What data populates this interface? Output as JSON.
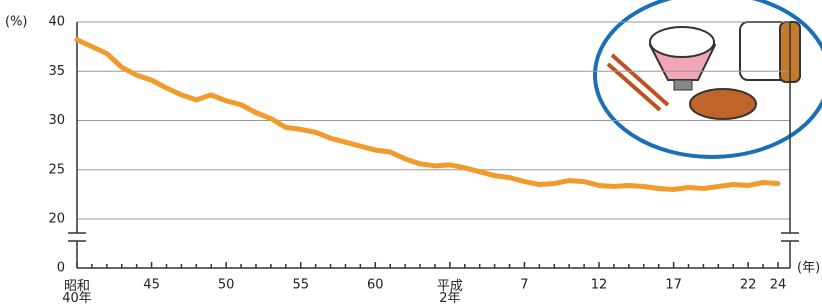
{
  "chart_data": {
    "type": "line",
    "y_unit": "(%)",
    "x_unit": "(年)",
    "categories": [
      "昭和\n40年",
      null,
      null,
      null,
      null,
      "45",
      null,
      null,
      null,
      null,
      "50",
      null,
      null,
      null,
      null,
      "55",
      null,
      null,
      null,
      null,
      "60",
      null,
      null,
      null,
      null,
      "平成\n2年",
      null,
      null,
      null,
      null,
      "7",
      null,
      null,
      null,
      null,
      "12",
      null,
      null,
      null,
      null,
      "17",
      null,
      null,
      null,
      null,
      "22",
      null,
      "24"
    ],
    "series": [
      {
        "name": null,
        "color": "#f39a2c",
        "values": [
          38.2,
          37.5,
          36.8,
          35.4,
          34.6,
          34.1,
          33.3,
          32.6,
          32.1,
          32.6,
          32.0,
          31.6,
          30.8,
          30.2,
          29.3,
          29.1,
          28.8,
          28.2,
          27.8,
          27.4,
          27.0,
          26.8,
          26.1,
          25.6,
          25.4,
          25.5,
          25.2,
          24.8,
          24.4,
          24.2,
          23.8,
          23.5,
          23.6,
          23.9,
          23.8,
          23.4,
          23.3,
          23.4,
          23.3,
          23.1,
          23.0,
          23.2,
          23.1,
          23.3,
          23.5,
          23.4,
          23.7,
          23.6
        ]
      }
    ],
    "ylim": [
      0,
      40
    ],
    "yticks": [
      0,
      20,
      25,
      30,
      35,
      40
    ],
    "axis_break": [
      0,
      20
    ],
    "grid": true
  }
}
